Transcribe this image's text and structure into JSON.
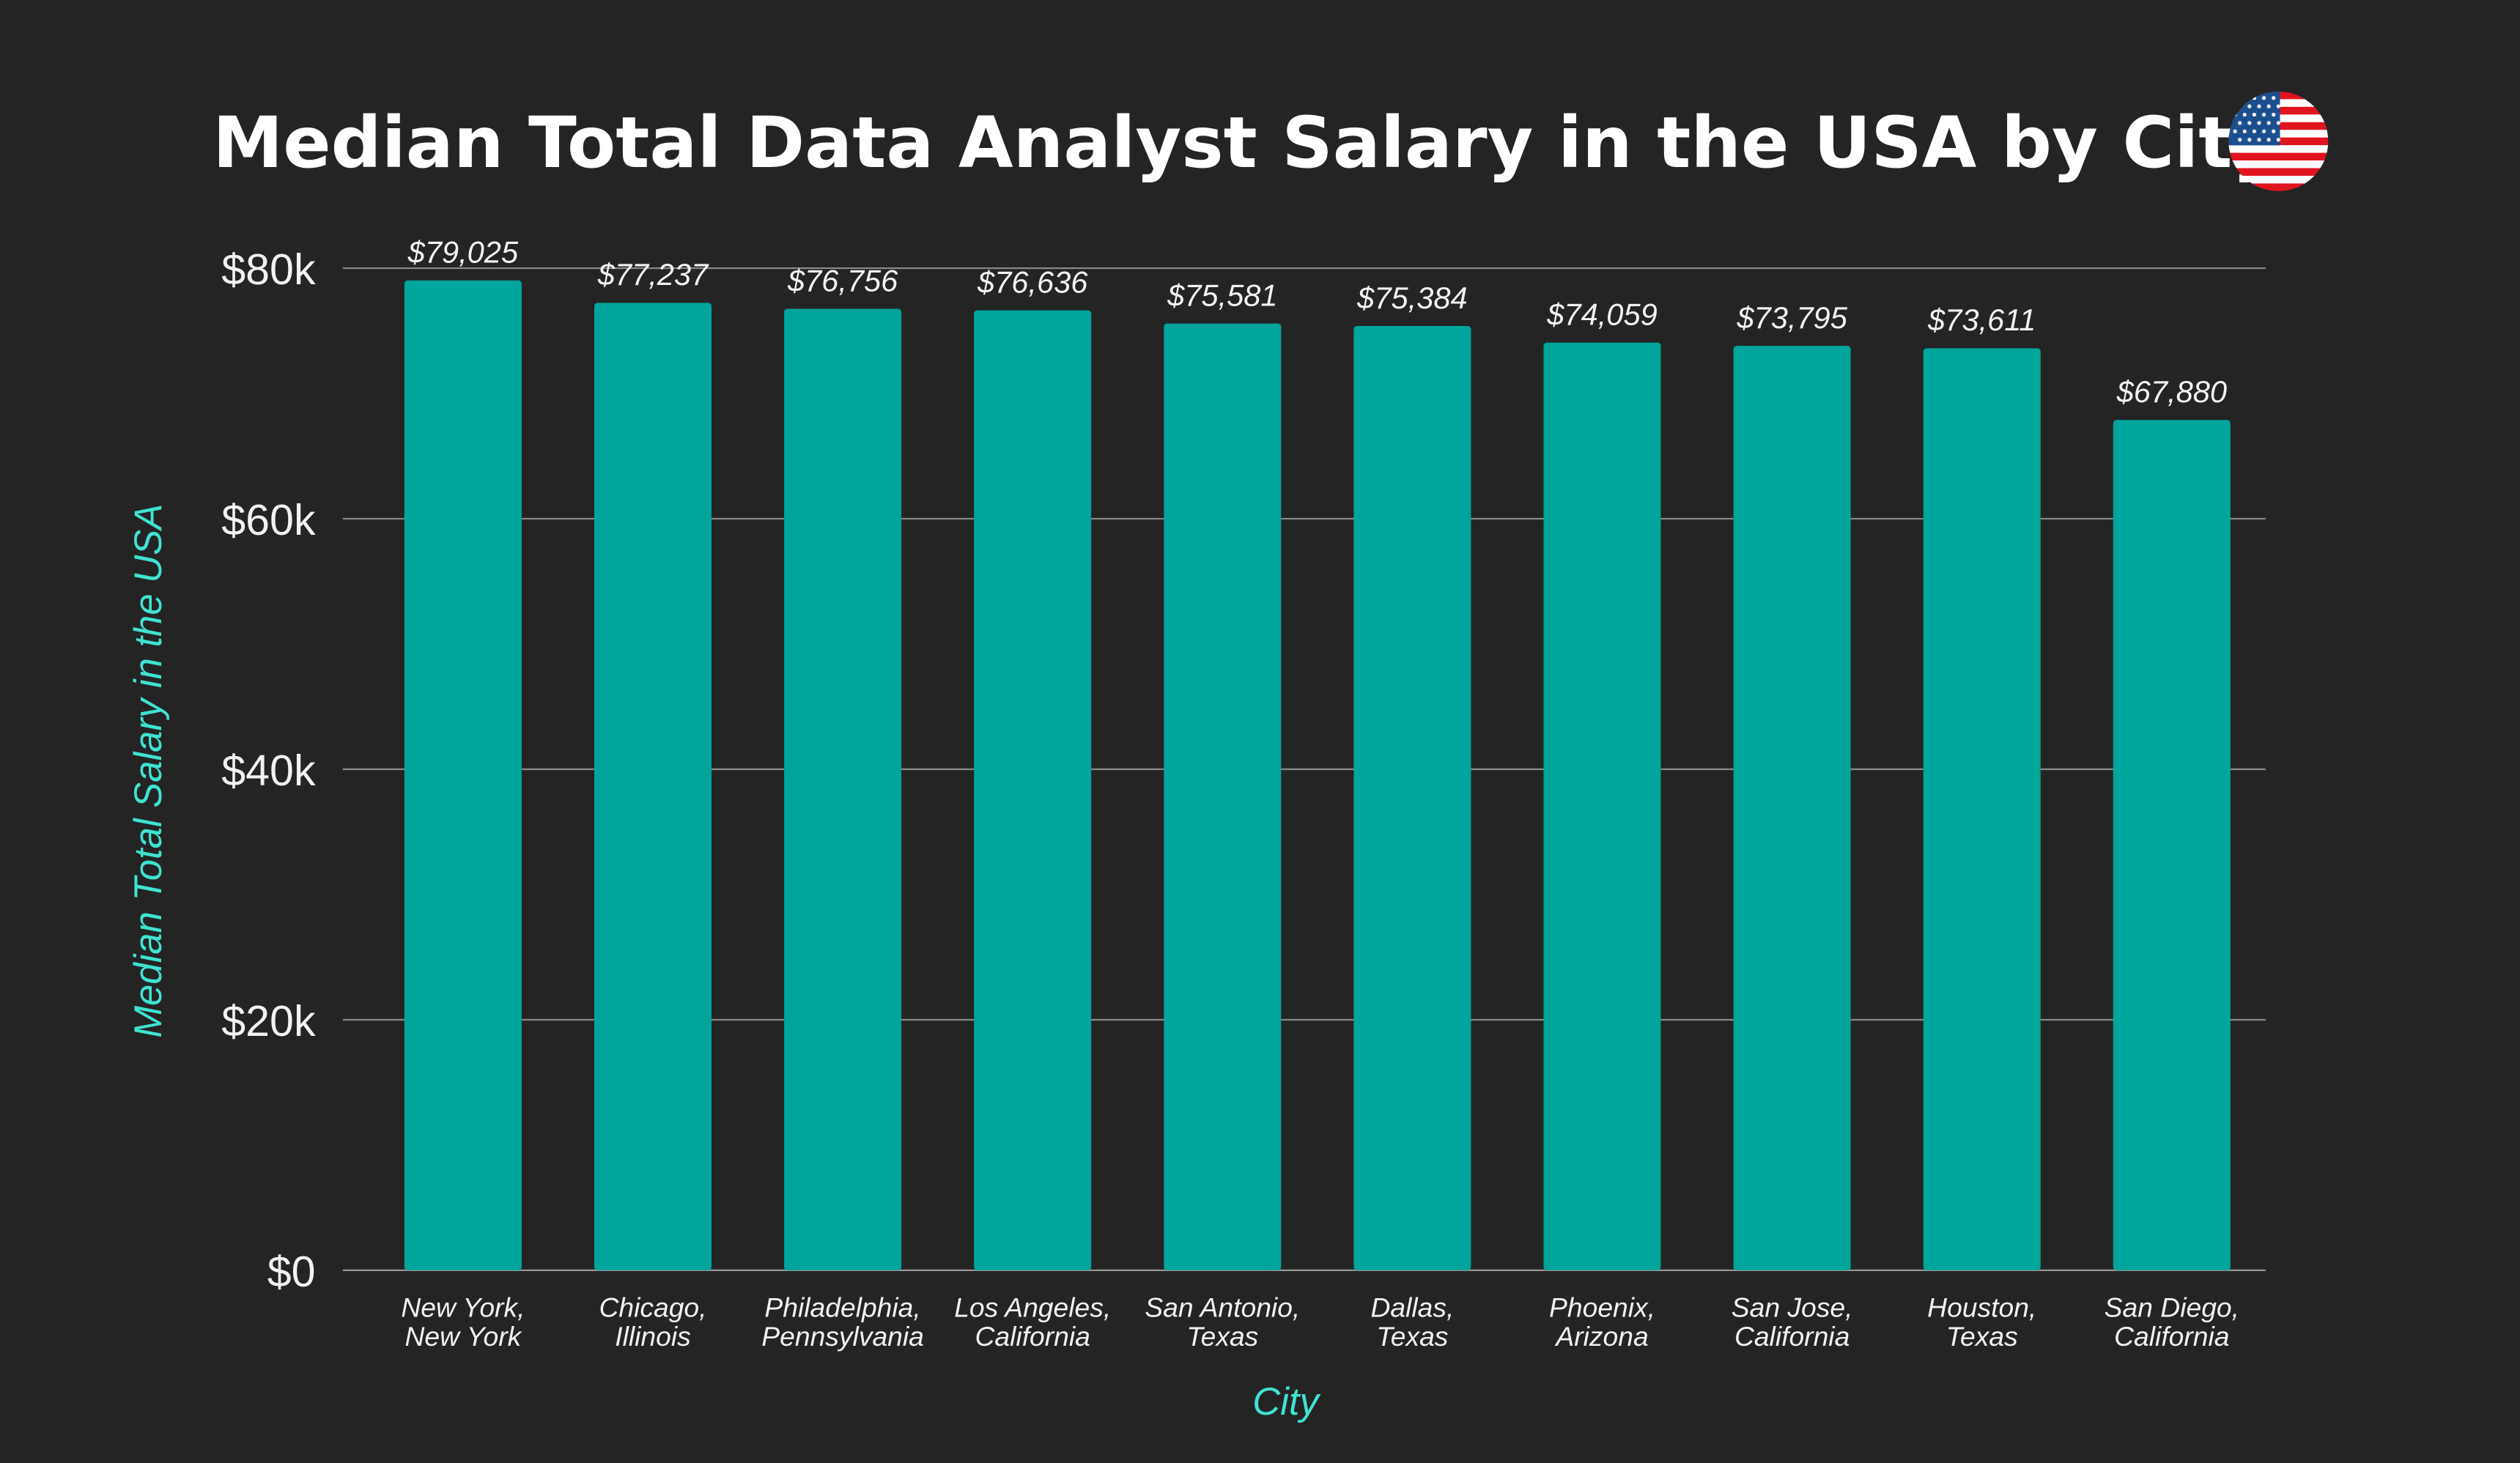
{
  "chart_data": {
    "type": "bar",
    "title": "Median Total Data Analyst Salary in the USA by City",
    "xlabel": "City",
    "ylabel": "Median Total Salary in the USA",
    "ylim": [
      0,
      80000
    ],
    "yticks": [
      0,
      20000,
      40000,
      60000,
      80000
    ],
    "ytick_labels": [
      "$0",
      "$20k",
      "$40k",
      "$60k",
      "$80k"
    ],
    "grid": true,
    "categories": [
      [
        "New York,",
        "New York"
      ],
      [
        "Chicago,",
        "Illinois"
      ],
      [
        "Philadelphia,",
        "Pennsylvania"
      ],
      [
        "Los Angeles,",
        "California"
      ],
      [
        "San Antonio,",
        "Texas"
      ],
      [
        "Dallas,",
        "Texas"
      ],
      [
        "Phoenix,",
        "Arizona"
      ],
      [
        "San Jose,",
        "California"
      ],
      [
        "Houston,",
        "Texas"
      ],
      [
        "San Diego,",
        "California"
      ]
    ],
    "values": [
      79025,
      77237,
      76756,
      76636,
      75581,
      75384,
      74059,
      73795,
      73611,
      67880
    ],
    "data_labels": [
      "$79,025",
      "$77,237",
      "$76,756",
      "$76,636",
      "$75,581",
      "$75,384",
      "$74,059",
      "$73,795",
      "$73,611",
      "$67,880"
    ],
    "colors": {
      "background": "#242424",
      "bar": "#00a59b",
      "axis_title": "#3fe3d2",
      "grid": "#8a8a8a"
    },
    "icon": "usa-flag-circle-icon"
  }
}
